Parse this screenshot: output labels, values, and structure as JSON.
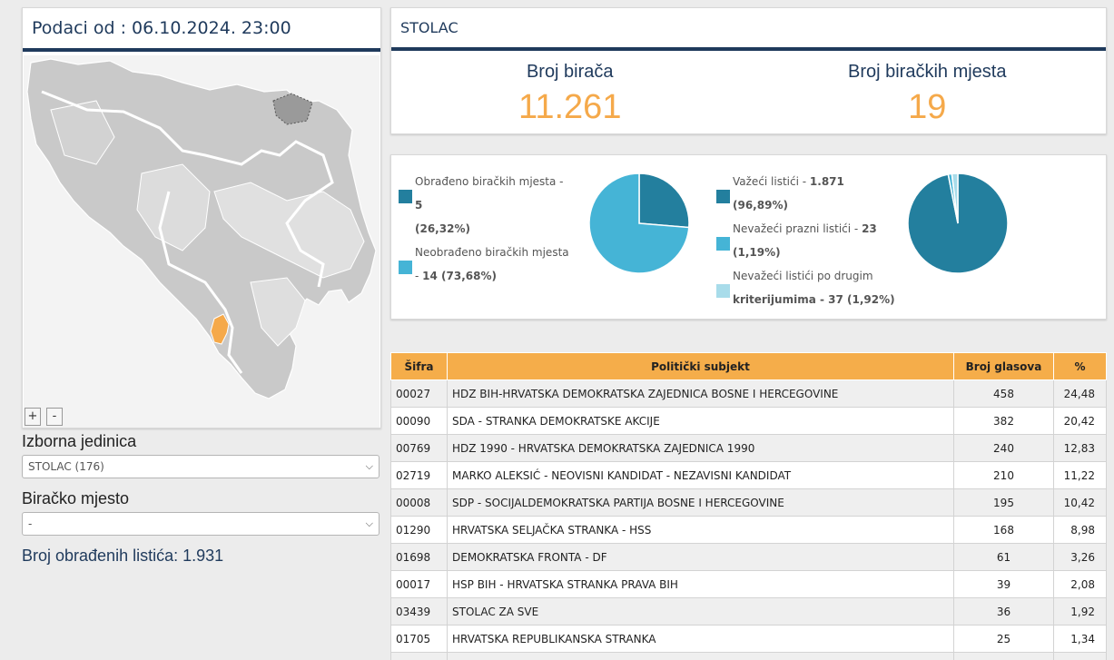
{
  "header": {
    "data_as_of": "Podaci od : 06.10.2024. 23:00"
  },
  "map": {
    "zoom_in": "+",
    "zoom_out": "-",
    "highlight_color": "#f5a94a"
  },
  "filters": {
    "unit_label": "Izborna jedinica",
    "unit_value": "STOLAC (176)",
    "station_label": "Biračko mjesto",
    "station_value": "-"
  },
  "processed_ballots": "Broj obrađenih listića: 1.931",
  "municipality": {
    "name": "STOLAC",
    "voters_label": "Broj birača",
    "voters_value": "11.261",
    "stations_label": "Broj biračkih mjesta",
    "stations_value": "19"
  },
  "pie_stations": {
    "items": [
      {
        "label": "Obrađeno biračkih mjesta - ",
        "value": "5",
        "pct": "(26,32%)",
        "fraction": 0.2632,
        "color": "#237f9e"
      },
      {
        "label": "Neobrađeno biračkih mjesta - ",
        "value": "14 (73,68%)",
        "pct": "",
        "fraction": 0.7368,
        "color": "#45b4d6"
      }
    ]
  },
  "pie_ballots": {
    "items": [
      {
        "label": "Važeći listići - ",
        "value": "1.871",
        "pct": "(96,89%)",
        "fraction": 0.9689,
        "color": "#237f9e"
      },
      {
        "label": "Nevažeći prazni listići - ",
        "value": "23",
        "pct": "(1,19%)",
        "fraction": 0.0119,
        "color": "#45b4d6"
      },
      {
        "label": "Nevažeći listići po drugim",
        "value": "",
        "pct": "kriterijumima - 37 (1,92%)",
        "fraction": 0.0192,
        "color": "#a8dcea"
      }
    ]
  },
  "table": {
    "headers": {
      "code": "Šifra",
      "party": "Politički subjekt",
      "votes": "Broj glasova",
      "pct": "%"
    },
    "rows": [
      {
        "code": "00027",
        "party": "HDZ BIH-HRVATSKA DEMOKRATSKA ZAJEDNICA BOSNE I HERCEGOVINE",
        "votes": "458",
        "pct": "24,48"
      },
      {
        "code": "00090",
        "party": "SDA - STRANKA DEMOKRATSKE AKCIJE",
        "votes": "382",
        "pct": "20,42"
      },
      {
        "code": "00769",
        "party": "HDZ 1990 - HRVATSKA DEMOKRATSKA ZAJEDNICA 1990",
        "votes": "240",
        "pct": "12,83"
      },
      {
        "code": "02719",
        "party": "MARKO ALEKSIĆ - NEOVISNI KANDIDAT - NEZAVISNI KANDIDAT",
        "votes": "210",
        "pct": "11,22"
      },
      {
        "code": "00008",
        "party": "SDP - SOCIJALDEMOKRATSKA PARTIJA BOSNE I HERCEGOVINE",
        "votes": "195",
        "pct": "10,42"
      },
      {
        "code": "01290",
        "party": "HRVATSKA SELJAČKA STRANKA - HSS",
        "votes": "168",
        "pct": "8,98"
      },
      {
        "code": "01698",
        "party": "DEMOKRATSKA FRONTA - DF",
        "votes": "61",
        "pct": "3,26"
      },
      {
        "code": "00017",
        "party": "HSP BIH - HRVATSKA STRANKA PRAVA BIH",
        "votes": "39",
        "pct": "2,08"
      },
      {
        "code": "03439",
        "party": "STOLAC ZA SVE",
        "votes": "36",
        "pct": "1,92"
      },
      {
        "code": "01705",
        "party": "HRVATSKA REPUBLIKANSKA STRANKA",
        "votes": "25",
        "pct": "1,34"
      },
      {
        "code": "",
        "party": "",
        "votes": "",
        "pct": ""
      }
    ]
  }
}
